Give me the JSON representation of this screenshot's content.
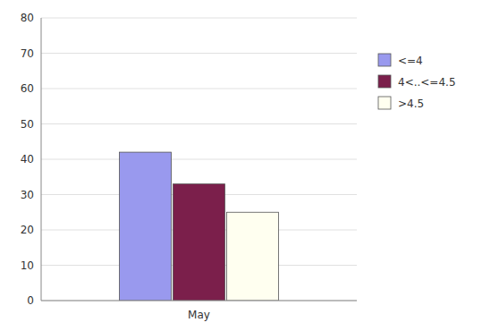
{
  "chart_data": {
    "type": "bar",
    "categories": [
      "May"
    ],
    "series": [
      {
        "name": "<=4",
        "color": "#9999EE",
        "values": [
          42
        ]
      },
      {
        "name": "4<..<=4.5",
        "color": "#7B1F4B",
        "values": [
          33
        ]
      },
      {
        "name": ">4.5",
        "color": "#FFFFF0",
        "values": [
          25
        ]
      }
    ],
    "ylim": [
      0,
      80
    ],
    "yticks": [
      0,
      10,
      20,
      30,
      40,
      50,
      60,
      70,
      80
    ],
    "grid": true,
    "legend": "right"
  }
}
